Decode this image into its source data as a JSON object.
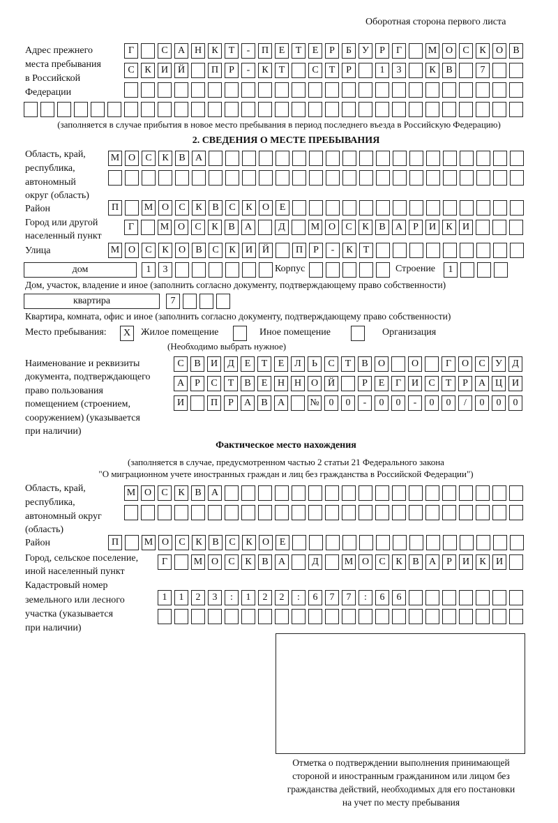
{
  "header": {
    "page_side": "Оборотная сторона первого листа"
  },
  "prev_address": {
    "label": [
      "Адрес прежнего",
      "места пребывания",
      "в Российской",
      "Федерации"
    ],
    "rows": [
      [
        "Г",
        "",
        "С",
        "А",
        "Н",
        "К",
        "Т",
        "-",
        "П",
        "Е",
        "Т",
        "Е",
        "Р",
        "Б",
        "У",
        "Р",
        "Г",
        "",
        "М",
        "О",
        "С",
        "К",
        "О",
        "В"
      ],
      [
        "С",
        "К",
        "И",
        "Й",
        "",
        "П",
        "Р",
        "-",
        "К",
        "Т",
        "",
        "С",
        "Т",
        "Р",
        "",
        "1",
        "3",
        "",
        "К",
        "В",
        "",
        "7",
        "",
        ""
      ],
      [
        "",
        "",
        "",
        "",
        "",
        "",
        "",
        "",
        "",
        "",
        "",
        "",
        "",
        "",
        "",
        "",
        "",
        "",
        "",
        "",
        "",
        "",
        "",
        ""
      ],
      [
        "",
        "",
        "",
        "",
        "",
        "",
        "",
        "",
        "",
        "",
        "",
        "",
        "",
        "",
        "",
        "",
        "",
        "",
        "",
        "",
        "",
        "",
        "",
        "",
        "",
        "",
        "",
        "",
        "",
        ""
      ]
    ],
    "note": "(заполняется в случае прибытия в новое место пребывания в период последнего въезда в Российскую Федерацию)"
  },
  "section2": {
    "title": "2. СВЕДЕНИЯ О МЕСТЕ ПРЕБЫВАНИЯ",
    "region_label": [
      "Область, край,",
      "республика,",
      "автономный",
      "округ (область)"
    ],
    "region_rows": [
      [
        "М",
        "О",
        "С",
        "К",
        "В",
        "А",
        "",
        "",
        "",
        "",
        "",
        "",
        "",
        "",
        "",
        "",
        "",
        "",
        "",
        "",
        "",
        "",
        "",
        "",
        ""
      ],
      [
        "",
        "",
        "",
        "",
        "",
        "",
        "",
        "",
        "",
        "",
        "",
        "",
        "",
        "",
        "",
        "",
        "",
        "",
        "",
        "",
        "",
        "",
        "",
        "",
        ""
      ]
    ],
    "district_label": "Район",
    "district_row": [
      "П",
      "",
      "М",
      "О",
      "С",
      "К",
      "В",
      "С",
      "К",
      "О",
      "Е",
      "",
      "",
      "",
      "",
      "",
      "",
      "",
      "",
      "",
      "",
      "",
      "",
      "",
      ""
    ],
    "city_label": [
      "Город или другой",
      "населенный пункт"
    ],
    "city_row": [
      "Г",
      "",
      "М",
      "О",
      "С",
      "К",
      "В",
      "А",
      "",
      "Д",
      "",
      "М",
      "О",
      "С",
      "К",
      "В",
      "А",
      "Р",
      "И",
      "К",
      "И",
      "",
      "",
      ""
    ],
    "street_label": "Улица",
    "street_row": [
      "М",
      "О",
      "С",
      "К",
      "О",
      "В",
      "С",
      "К",
      "И",
      "Й",
      "",
      "П",
      "Р",
      "-",
      "К",
      "Т",
      "",
      "",
      "",
      "",
      "",
      "",
      "",
      "",
      ""
    ],
    "house_type": "дом",
    "house_cells": [
      "1",
      "3",
      "",
      "",
      "",
      "",
      "",
      ""
    ],
    "korpus_label": "Корпус",
    "korpus_cells": [
      "",
      "",
      "",
      "",
      ""
    ],
    "building_label": "Строение",
    "building_cells": [
      "1",
      "",
      "",
      ""
    ],
    "house_note": "Дом, участок, владение и иное (заполнить согласно документу, подтверждающему право собственности)",
    "apt_type": "квартира",
    "apt_cells": [
      "7",
      "",
      "",
      ""
    ],
    "apt_note": "Квартира, комната, офис и иное (заполнить согласно документу, подтверждающему право собственности)",
    "place_label": "Место пребывания:",
    "place_options": [
      {
        "label": "Жилое помещение",
        "mark": "X"
      },
      {
        "label": "Иное помещение",
        "mark": ""
      },
      {
        "label": "Организация",
        "mark": ""
      }
    ],
    "place_note": "(Необходимо выбрать нужное)",
    "doc_label": [
      "Наименование и реквизиты",
      "документа, подтверждающего",
      "право пользования",
      "помещением (строением,",
      "сооружением) (указывается",
      "при наличии)"
    ],
    "doc_rows": [
      [
        "С",
        "В",
        "И",
        "Д",
        "Е",
        "Т",
        "Е",
        "Л",
        "Ь",
        "С",
        "Т",
        "В",
        "О",
        "",
        "О",
        "",
        "Г",
        "О",
        "С",
        "У",
        "Д"
      ],
      [
        "А",
        "Р",
        "С",
        "Т",
        "В",
        "Е",
        "Н",
        "Н",
        "О",
        "Й",
        "",
        "Р",
        "Е",
        "Г",
        "И",
        "С",
        "Т",
        "Р",
        "А",
        "Ц",
        "И"
      ],
      [
        "И",
        "",
        "П",
        "Р",
        "А",
        "В",
        "А",
        "",
        "№",
        "0",
        "0",
        "-",
        "0",
        "0",
        "-",
        "0",
        "0",
        "/",
        "0",
        "0",
        "0"
      ]
    ]
  },
  "actual": {
    "title": "Фактическое место нахождения",
    "subtitle": [
      "(заполняется в случае, предусмотренном частью 2 статьи 21 Федерального закона",
      "\"О миграционном учете иностранных граждан и лиц без гражданства в Российской Федерации\")"
    ],
    "region_label": [
      "Область, край,",
      "республика,",
      "автономный округ",
      "(область)"
    ],
    "region_rows": [
      [
        "М",
        "О",
        "С",
        "К",
        "В",
        "А",
        "",
        "",
        "",
        "",
        "",
        "",
        "",
        "",
        "",
        "",
        "",
        "",
        "",
        "",
        "",
        "",
        "",
        ""
      ],
      [
        "",
        "",
        "",
        "",
        "",
        "",
        "",
        "",
        "",
        "",
        "",
        "",
        "",
        "",
        "",
        "",
        "",
        "",
        "",
        "",
        "",
        "",
        "",
        ""
      ]
    ],
    "district_label": "Район",
    "district_row": [
      "П",
      "",
      "М",
      "О",
      "С",
      "К",
      "В",
      "С",
      "К",
      "О",
      "Е",
      "",
      "",
      "",
      "",
      "",
      "",
      "",
      "",
      "",
      "",
      "",
      "",
      "",
      ""
    ],
    "city_label": [
      "Город, сельское поселение,",
      "иной населенный пункт"
    ],
    "city_row": [
      "Г",
      "",
      "М",
      "О",
      "С",
      "К",
      "В",
      "А",
      "",
      "Д",
      "",
      "М",
      "О",
      "С",
      "К",
      "В",
      "А",
      "Р",
      "И",
      "К",
      "И",
      ""
    ],
    "cadastral_label": [
      "Кадастровый номер",
      "земельного или лесного",
      "участка (указывается",
      "при наличии)"
    ],
    "cadastral_rows": [
      [
        "1",
        "1",
        "2",
        "3",
        ":",
        "1",
        "2",
        "2",
        ":",
        "6",
        "7",
        "7",
        ":",
        "6",
        "6",
        "",
        "",
        "",
        "",
        "",
        "",
        ""
      ],
      [
        "",
        "",
        "",
        "",
        "",
        "",
        "",
        "",
        "",
        "",
        "",
        "",
        "",
        "",
        "",
        "",
        "",
        "",
        "",
        "",
        "",
        ""
      ]
    ],
    "stamp_caption": [
      "Отметка о подтверждении выполнения принимающей",
      "стороной и иностранным гражданином или лицом без",
      "гражданства действий, необходимых для его постановки",
      "на учет по месту пребывания"
    ]
  }
}
